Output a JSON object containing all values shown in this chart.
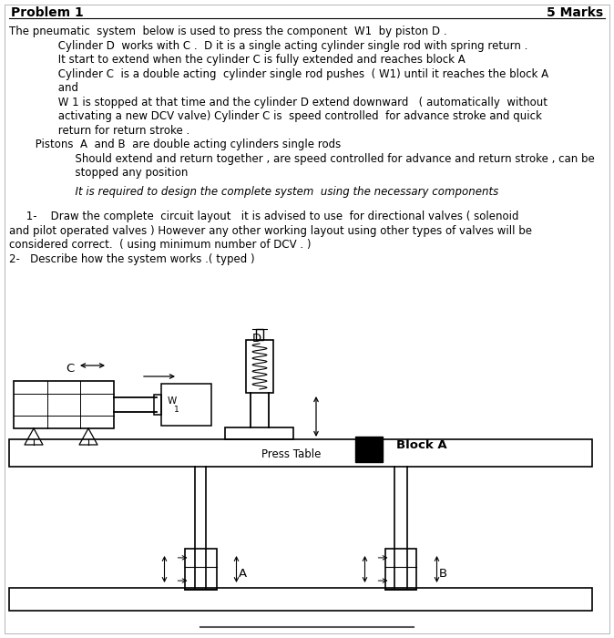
{
  "bg_color": "#ffffff",
  "title_left": "Problem 1",
  "title_right": "5 Marks",
  "line1": "The pneumatic  system  below is used to press the component  W1  by piston D .",
  "line2": "     Cylinder D  works with C .  D it is a single acting cylinder single rod with spring return .",
  "line3": "     It start to extend when the cylinder C is fully extended and reaches block A",
  "line4": "     Cylinder C  is a double acting  cylinder single rod pushes  ( W1) until it reaches the block A",
  "line5": "     and",
  "line6": "     W 1 is stopped at that time and the cylinder D extend downward   ( automatically  without",
  "line7": "     activating a new DCV valve) Cylinder C is  speed controlled  for advance stroke and quick",
  "line8": "     return for return stroke .",
  "line9": "     Pistons  A  and B  are double acting cylinders single rods",
  "line10": "          Should extend and return together , are speed controlled for advance and return stroke , can be",
  "line11": "          stopped any position",
  "line12": "          It is required to design the complete system  using the necessary components",
  "line13": "     1-    Draw the complete  circuit layout   it is advised to use  for directional valves ( solenoid",
  "line14": "and pilot operated valves ) However any other working layout using other types of valves will be",
  "line15": "considered correct.  ( using minimum number of DCV . )",
  "line16": "2-   Describe how the system works .( typed )"
}
